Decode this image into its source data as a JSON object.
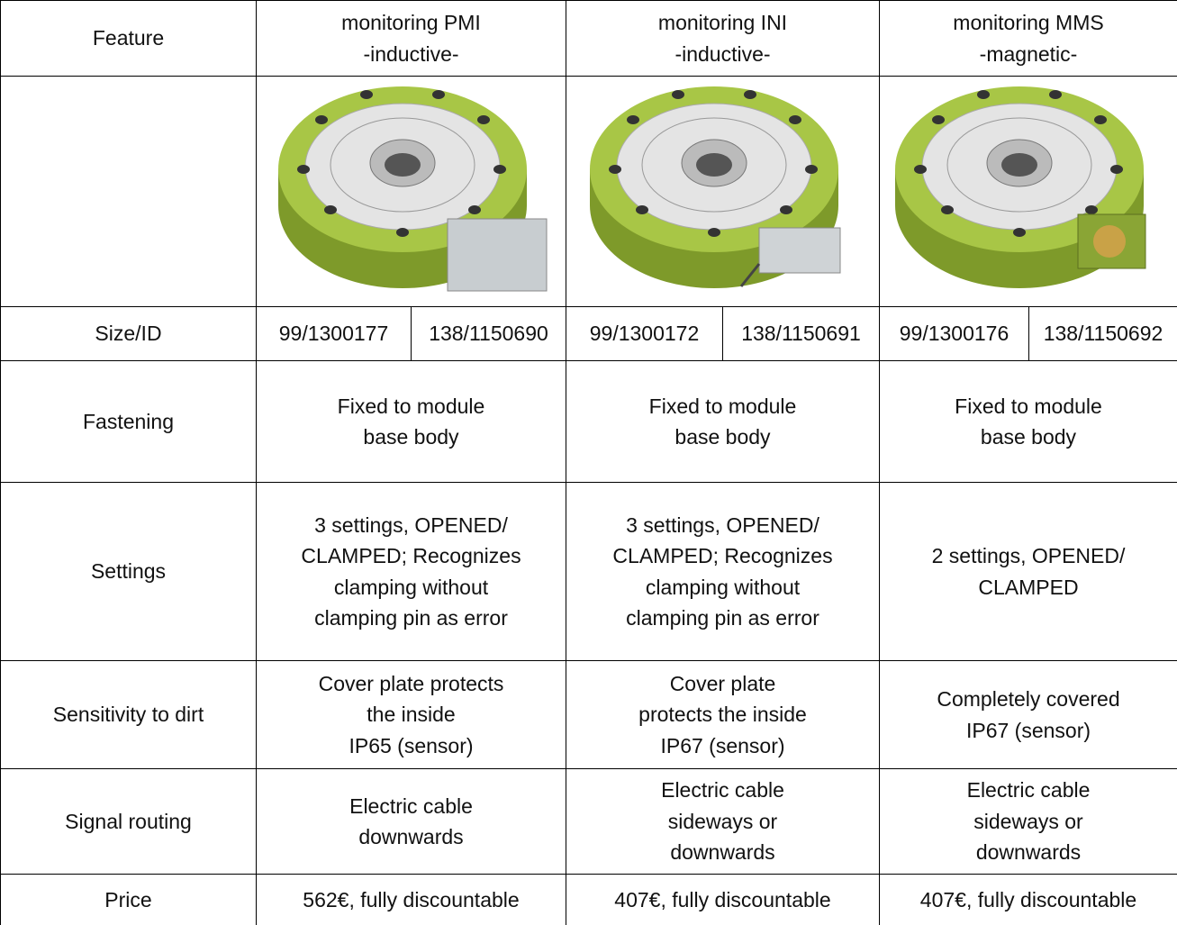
{
  "table": {
    "header": {
      "feature": "Feature",
      "columns": [
        [
          "monitoring PMI",
          "-inductive-"
        ],
        [
          "monitoring INI",
          "-inductive-"
        ],
        [
          "monitoring MMS",
          "-magnetic-"
        ]
      ]
    },
    "size_row": {
      "label": "Size/ID",
      "ids": [
        [
          "99/1300177",
          "138/1150690"
        ],
        [
          "99/1300172",
          "138/1150691"
        ],
        [
          "99/1300176",
          "138/1150692"
        ]
      ]
    },
    "rows": [
      {
        "label": "Fastening",
        "cells": [
          [
            "Fixed to module",
            "base body"
          ],
          [
            "Fixed to module",
            "base body"
          ],
          [
            "Fixed to module",
            "base body"
          ]
        ]
      },
      {
        "label": "Settings",
        "cells": [
          [
            "3 settings, OPENED/",
            "CLAMPED; Recognizes",
            "clamping without",
            "clamping pin as error"
          ],
          [
            "3 settings, OPENED/",
            "CLAMPED; Recognizes",
            "clamping without",
            "clamping pin as error"
          ],
          [
            "2 settings, OPENED/",
            "CLAMPED"
          ]
        ]
      },
      {
        "label": "Sensitivity to dirt",
        "cells": [
          [
            "Cover plate protects",
            "the inside",
            "IP65 (sensor)"
          ],
          [
            "Cover plate",
            "protects the inside",
            "IP67 (sensor)"
          ],
          [
            "Completely covered",
            "IP67 (sensor)"
          ]
        ]
      },
      {
        "label": "Signal routing",
        "cells": [
          [
            "Electric cable",
            "downwards"
          ],
          [
            "Electric cable",
            "sideways or",
            "downwards"
          ],
          [
            "Electric cable",
            "sideways or",
            "downwards"
          ]
        ]
      },
      {
        "label": "Price",
        "cells": [
          [
            "562€, fully discountable"
          ],
          [
            "407€, fully discountable"
          ],
          [
            "407€, fully discountable"
          ]
        ]
      }
    ]
  }
}
